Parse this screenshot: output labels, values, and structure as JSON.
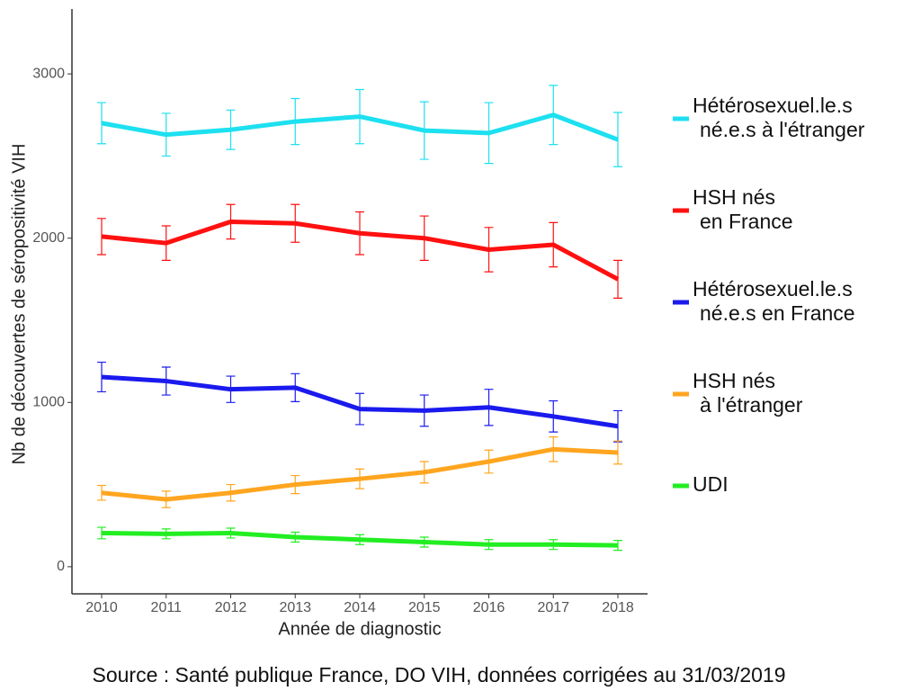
{
  "chart_data": {
    "type": "line",
    "x_label": "Année de diagnostic",
    "y_label": "Nb de découvertes de séropositivité VIH",
    "source": "Source : Santé publique France, DO VIH, données corrigées au 31/03/2019",
    "x": [
      2010,
      2011,
      2012,
      2013,
      2014,
      2015,
      2016,
      2017,
      2018
    ],
    "xlim": [
      2009.54,
      2018.46
    ],
    "xticks": [
      2010,
      2011,
      2012,
      2013,
      2014,
      2015,
      2016,
      2017,
      2018
    ],
    "ylim": [
      -165,
      3395
    ],
    "yticks": [
      0,
      1000,
      2000,
      3000
    ],
    "grid": false,
    "legend": "right",
    "series": [
      {
        "name": "Hétérosexuel.le.s\nné.e.s à l'étranger",
        "color": "#1de0f0",
        "values": [
          2700,
          2630,
          2660,
          2710,
          2740,
          2655,
          2640,
          2750,
          2600
        ],
        "errors": [
          125,
          130,
          120,
          140,
          165,
          175,
          185,
          180,
          165
        ]
      },
      {
        "name": "HSH nés\nen France",
        "color": "#ff1010",
        "values": [
          2010,
          1970,
          2100,
          2090,
          2030,
          2000,
          1930,
          1960,
          1750
        ],
        "errors": [
          110,
          105,
          105,
          115,
          130,
          135,
          135,
          135,
          115
        ]
      },
      {
        "name": "Hétérosexuel.le.s\nné.e.s en France",
        "color": "#1a1aee",
        "values": [
          1155,
          1130,
          1080,
          1090,
          960,
          950,
          970,
          915,
          855
        ],
        "errors": [
          90,
          85,
          80,
          85,
          95,
          95,
          110,
          95,
          95
        ]
      },
      {
        "name": "HSH nés\nà l'étranger",
        "color": "#ffa51f",
        "values": [
          450,
          410,
          450,
          500,
          535,
          575,
          640,
          715,
          695
        ],
        "errors": [
          45,
          50,
          50,
          55,
          60,
          65,
          70,
          75,
          70
        ]
      },
      {
        "name": "UDI",
        "color": "#22ee22",
        "values": [
          205,
          200,
          205,
          180,
          165,
          150,
          135,
          135,
          130
        ],
        "errors": [
          35,
          30,
          30,
          30,
          30,
          30,
          30,
          30,
          30
        ]
      }
    ]
  }
}
